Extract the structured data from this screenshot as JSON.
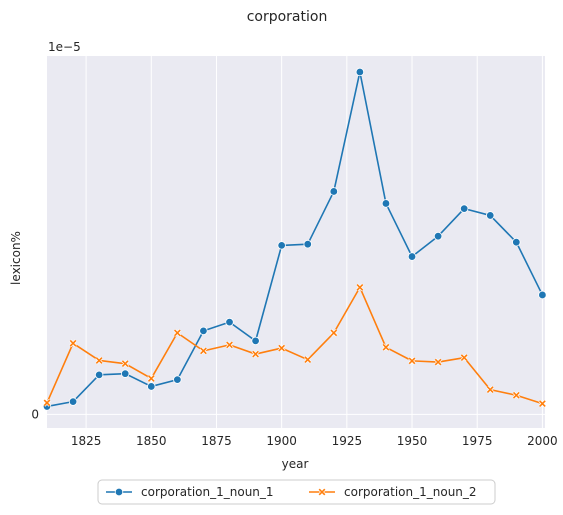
{
  "chart_data": {
    "type": "line",
    "title": "corporation",
    "xlabel": "year",
    "ylabel": "lexicon%",
    "y_offset_text": "1e−5",
    "xlim": [
      1810,
      2001
    ],
    "ylim": [
      -3.4e-07,
      8.97e-06
    ],
    "xticks": [
      1825,
      1850,
      1875,
      1900,
      1925,
      1950,
      1975,
      2000
    ],
    "yticks": [
      0,
      2,
      4,
      6,
      8
    ],
    "grid": true,
    "legend_position": "bottom-center",
    "x": [
      1810,
      1820,
      1830,
      1840,
      1850,
      1860,
      1870,
      1880,
      1890,
      1900,
      1910,
      1920,
      1930,
      1940,
      1950,
      1960,
      1970,
      1980,
      1990,
      2000
    ],
    "series": [
      {
        "name": "corporation_1_noun_1",
        "color": "#1f77b4",
        "marker": "circle",
        "values": [
          2e-07,
          3.2e-07,
          9.9e-07,
          1.02e-06,
          7e-07,
          8.7e-07,
          2.09e-06,
          2.31e-06,
          1.84e-06,
          4.23e-06,
          4.26e-06,
          5.58e-06,
          8.57e-06,
          5.28e-06,
          3.95e-06,
          4.46e-06,
          5.15e-06,
          4.98e-06,
          4.31e-06,
          2.99e-06
        ]
      },
      {
        "name": "corporation_1_noun_2",
        "color": "#ff7f0e",
        "marker": "x",
        "values": [
          2.9e-07,
          1.78e-06,
          1.35e-06,
          1.27e-06,
          9e-07,
          2.04e-06,
          1.59e-06,
          1.74e-06,
          1.51e-06,
          1.66e-06,
          1.37e-06,
          2.04e-06,
          3.18e-06,
          1.68e-06,
          1.34e-06,
          1.31e-06,
          1.42e-06,
          6.2e-07,
          4.8e-07,
          2.7e-07
        ]
      }
    ]
  }
}
